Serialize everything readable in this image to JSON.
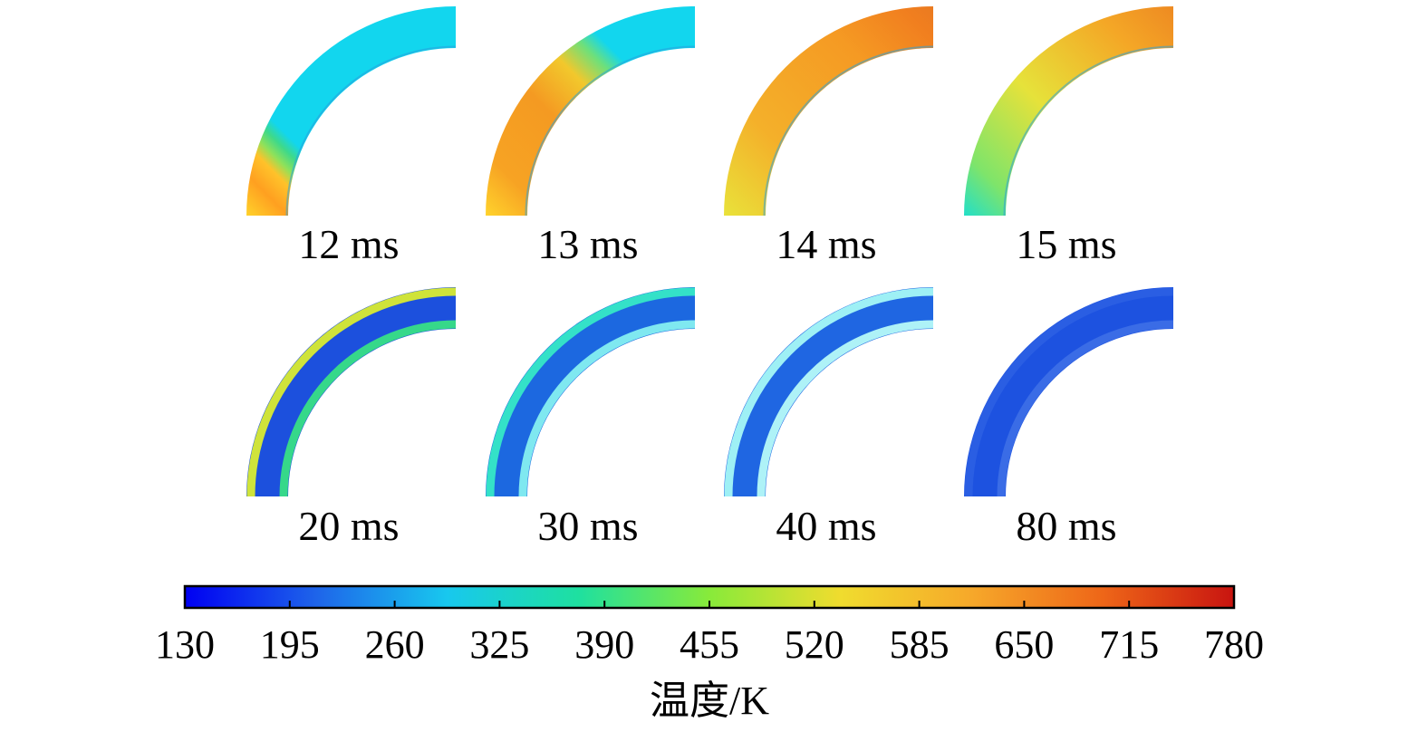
{
  "figure": {
    "panels": [
      {
        "label": "12 ms",
        "stage": "heating",
        "stops": [
          [
            "0",
            "#ffd22a"
          ],
          [
            "0.10",
            "#ffa020"
          ],
          [
            "0.17",
            "#ffc22a"
          ],
          [
            "0.21",
            "#8fe15a"
          ],
          [
            "0.25",
            "#3ed98a"
          ],
          [
            "0.29",
            "#12d6ee"
          ],
          [
            "1",
            "#12d6ee"
          ]
        ]
      },
      {
        "label": "13 ms",
        "stage": "heating",
        "stops": [
          [
            "0",
            "#ffd32c"
          ],
          [
            "0.15",
            "#f7a323"
          ],
          [
            "0.40",
            "#f49a22"
          ],
          [
            "0.55",
            "#f2c82c"
          ],
          [
            "0.64",
            "#6ee07a"
          ],
          [
            "0.70",
            "#12d6ee"
          ],
          [
            "1",
            "#12d6ee"
          ]
        ]
      },
      {
        "label": "14 ms",
        "stage": "heating",
        "stops": [
          [
            "0",
            "#e9e23a"
          ],
          [
            "0.30",
            "#f4b02a"
          ],
          [
            "0.70",
            "#f59a23"
          ],
          [
            "0.92",
            "#f17f1f"
          ],
          [
            "1",
            "#ea7a20"
          ]
        ]
      },
      {
        "label": "15 ms",
        "stage": "heating",
        "stops": [
          [
            "0",
            "#22dfc8"
          ],
          [
            "0.15",
            "#7fe46a"
          ],
          [
            "0.45",
            "#e6e23a"
          ],
          [
            "0.80",
            "#f4a726"
          ],
          [
            "1",
            "#ee8a22"
          ]
        ]
      },
      {
        "label": "20 ms",
        "stage": "cooling",
        "body": "#1c50dd",
        "inner": "#36d88a",
        "outer": "#cfe33a"
      },
      {
        "label": "30 ms",
        "stage": "cooling",
        "body": "#1c68e0",
        "inner": "#7fe8f0",
        "outer": "#34e1c8"
      },
      {
        "label": "40 ms",
        "stage": "cooling",
        "body": "#1f66e2",
        "inner": "#aef2f7",
        "outer": "#9ef0f5"
      },
      {
        "label": "80 ms",
        "stage": "cooling",
        "body": "#1d52e0",
        "inner": "#3a6ce6",
        "outer": "#2a5ee3"
      }
    ],
    "colorbar": {
      "min": 130,
      "max": 780,
      "ticks": [
        "130",
        "195",
        "260",
        "325",
        "390",
        "455",
        "520",
        "585",
        "650",
        "715",
        "780"
      ],
      "title": "温度/K",
      "gradient": [
        "#0000f2",
        "#1e64ea",
        "#18c8ee",
        "#1ee0a0",
        "#88ea3a",
        "#f0dc2e",
        "#f6a82a",
        "#ee6618",
        "#c81410"
      ]
    }
  }
}
